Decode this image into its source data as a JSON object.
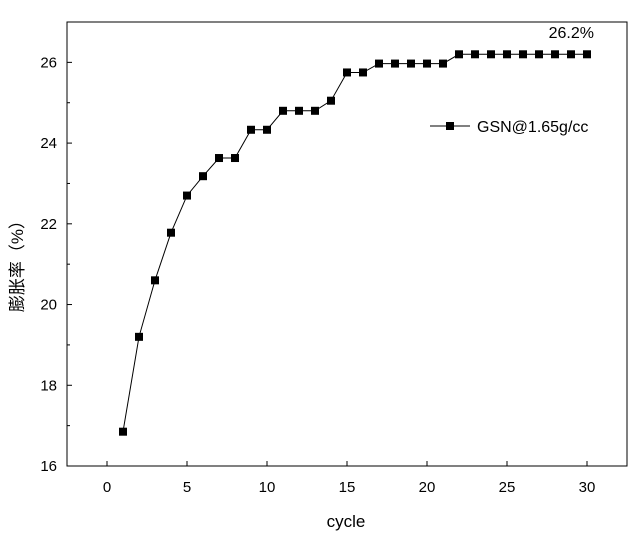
{
  "chart_data": {
    "type": "line",
    "title": "",
    "xlabel": "cycle",
    "ylabel": "膨胀率（%）",
    "xlim": [
      -2.5,
      32.5
    ],
    "ylim": [
      16,
      27
    ],
    "x_ticks": [
      0,
      5,
      10,
      15,
      20,
      25,
      30
    ],
    "y_ticks": [
      16,
      18,
      20,
      22,
      24,
      26
    ],
    "grid": false,
    "legend": {
      "placement": "top-right",
      "entries": [
        "GSN@1.65g/cc"
      ]
    },
    "annotation": "26.2%",
    "series": [
      {
        "name": "GSN@1.65g/cc",
        "marker": "square",
        "color": "#000000",
        "x": [
          1,
          2,
          3,
          4,
          5,
          6,
          7,
          8,
          9,
          10,
          11,
          12,
          13,
          14,
          15,
          16,
          17,
          18,
          19,
          20,
          21,
          22,
          23,
          24,
          25,
          26,
          27,
          28,
          29,
          30
        ],
        "y": [
          16.85,
          19.2,
          20.6,
          21.78,
          22.7,
          23.18,
          23.63,
          23.63,
          24.33,
          24.33,
          24.8,
          24.8,
          24.8,
          25.05,
          25.75,
          25.75,
          25.97,
          25.97,
          25.97,
          25.97,
          25.97,
          26.2,
          26.2,
          26.2,
          26.2,
          26.2,
          26.2,
          26.2,
          26.2,
          26.2
        ]
      }
    ]
  }
}
